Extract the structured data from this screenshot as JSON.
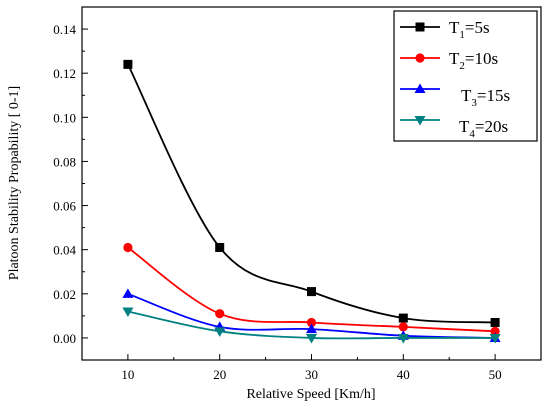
{
  "chart_data": {
    "type": "line",
    "title": "",
    "xlabel": "Relative Speed [Km/h]",
    "ylabel": "Platoon Stability Propability [ 0-1]",
    "xlim": [
      5,
      55
    ],
    "ylim": [
      -0.01,
      0.15
    ],
    "xticks": [
      10,
      20,
      30,
      40,
      50
    ],
    "yticks": [
      0.0,
      0.02,
      0.04,
      0.06,
      0.08,
      0.1,
      0.12,
      0.14
    ],
    "ytick_labels": [
      "0.00",
      "0.02",
      "0.04",
      "0.06",
      "0.08",
      "0.10",
      "0.12",
      "0.14"
    ],
    "x": [
      10,
      20,
      30,
      40,
      50
    ],
    "grid": false,
    "legend_position": "top-right",
    "series": [
      {
        "name": "T1=5s",
        "legend": {
          "base": "T",
          "sub": "1",
          "rest": "=5s"
        },
        "color": "#000000",
        "marker": "square",
        "values": [
          0.124,
          0.041,
          0.021,
          0.009,
          0.007
        ]
      },
      {
        "name": "T2=10s",
        "legend": {
          "base": "T",
          "sub": "2",
          "rest": "=10s"
        },
        "color": "#ff0000",
        "marker": "circle",
        "values": [
          0.041,
          0.011,
          0.007,
          0.005,
          0.003
        ]
      },
      {
        "name": "T3=15s",
        "legend": {
          "base": "T",
          "sub": "3",
          "rest": "=15s"
        },
        "color": "#0000ff",
        "marker": "triangle-up",
        "values": [
          0.02,
          0.005,
          0.004,
          0.001,
          0.0
        ]
      },
      {
        "name": "T4=20s",
        "legend": {
          "base": "T",
          "sub": "4",
          "rest": "=20s"
        },
        "color": "#008080",
        "marker": "triangle-down",
        "values": [
          0.012,
          0.003,
          0.0,
          0.0,
          0.0
        ]
      }
    ]
  }
}
